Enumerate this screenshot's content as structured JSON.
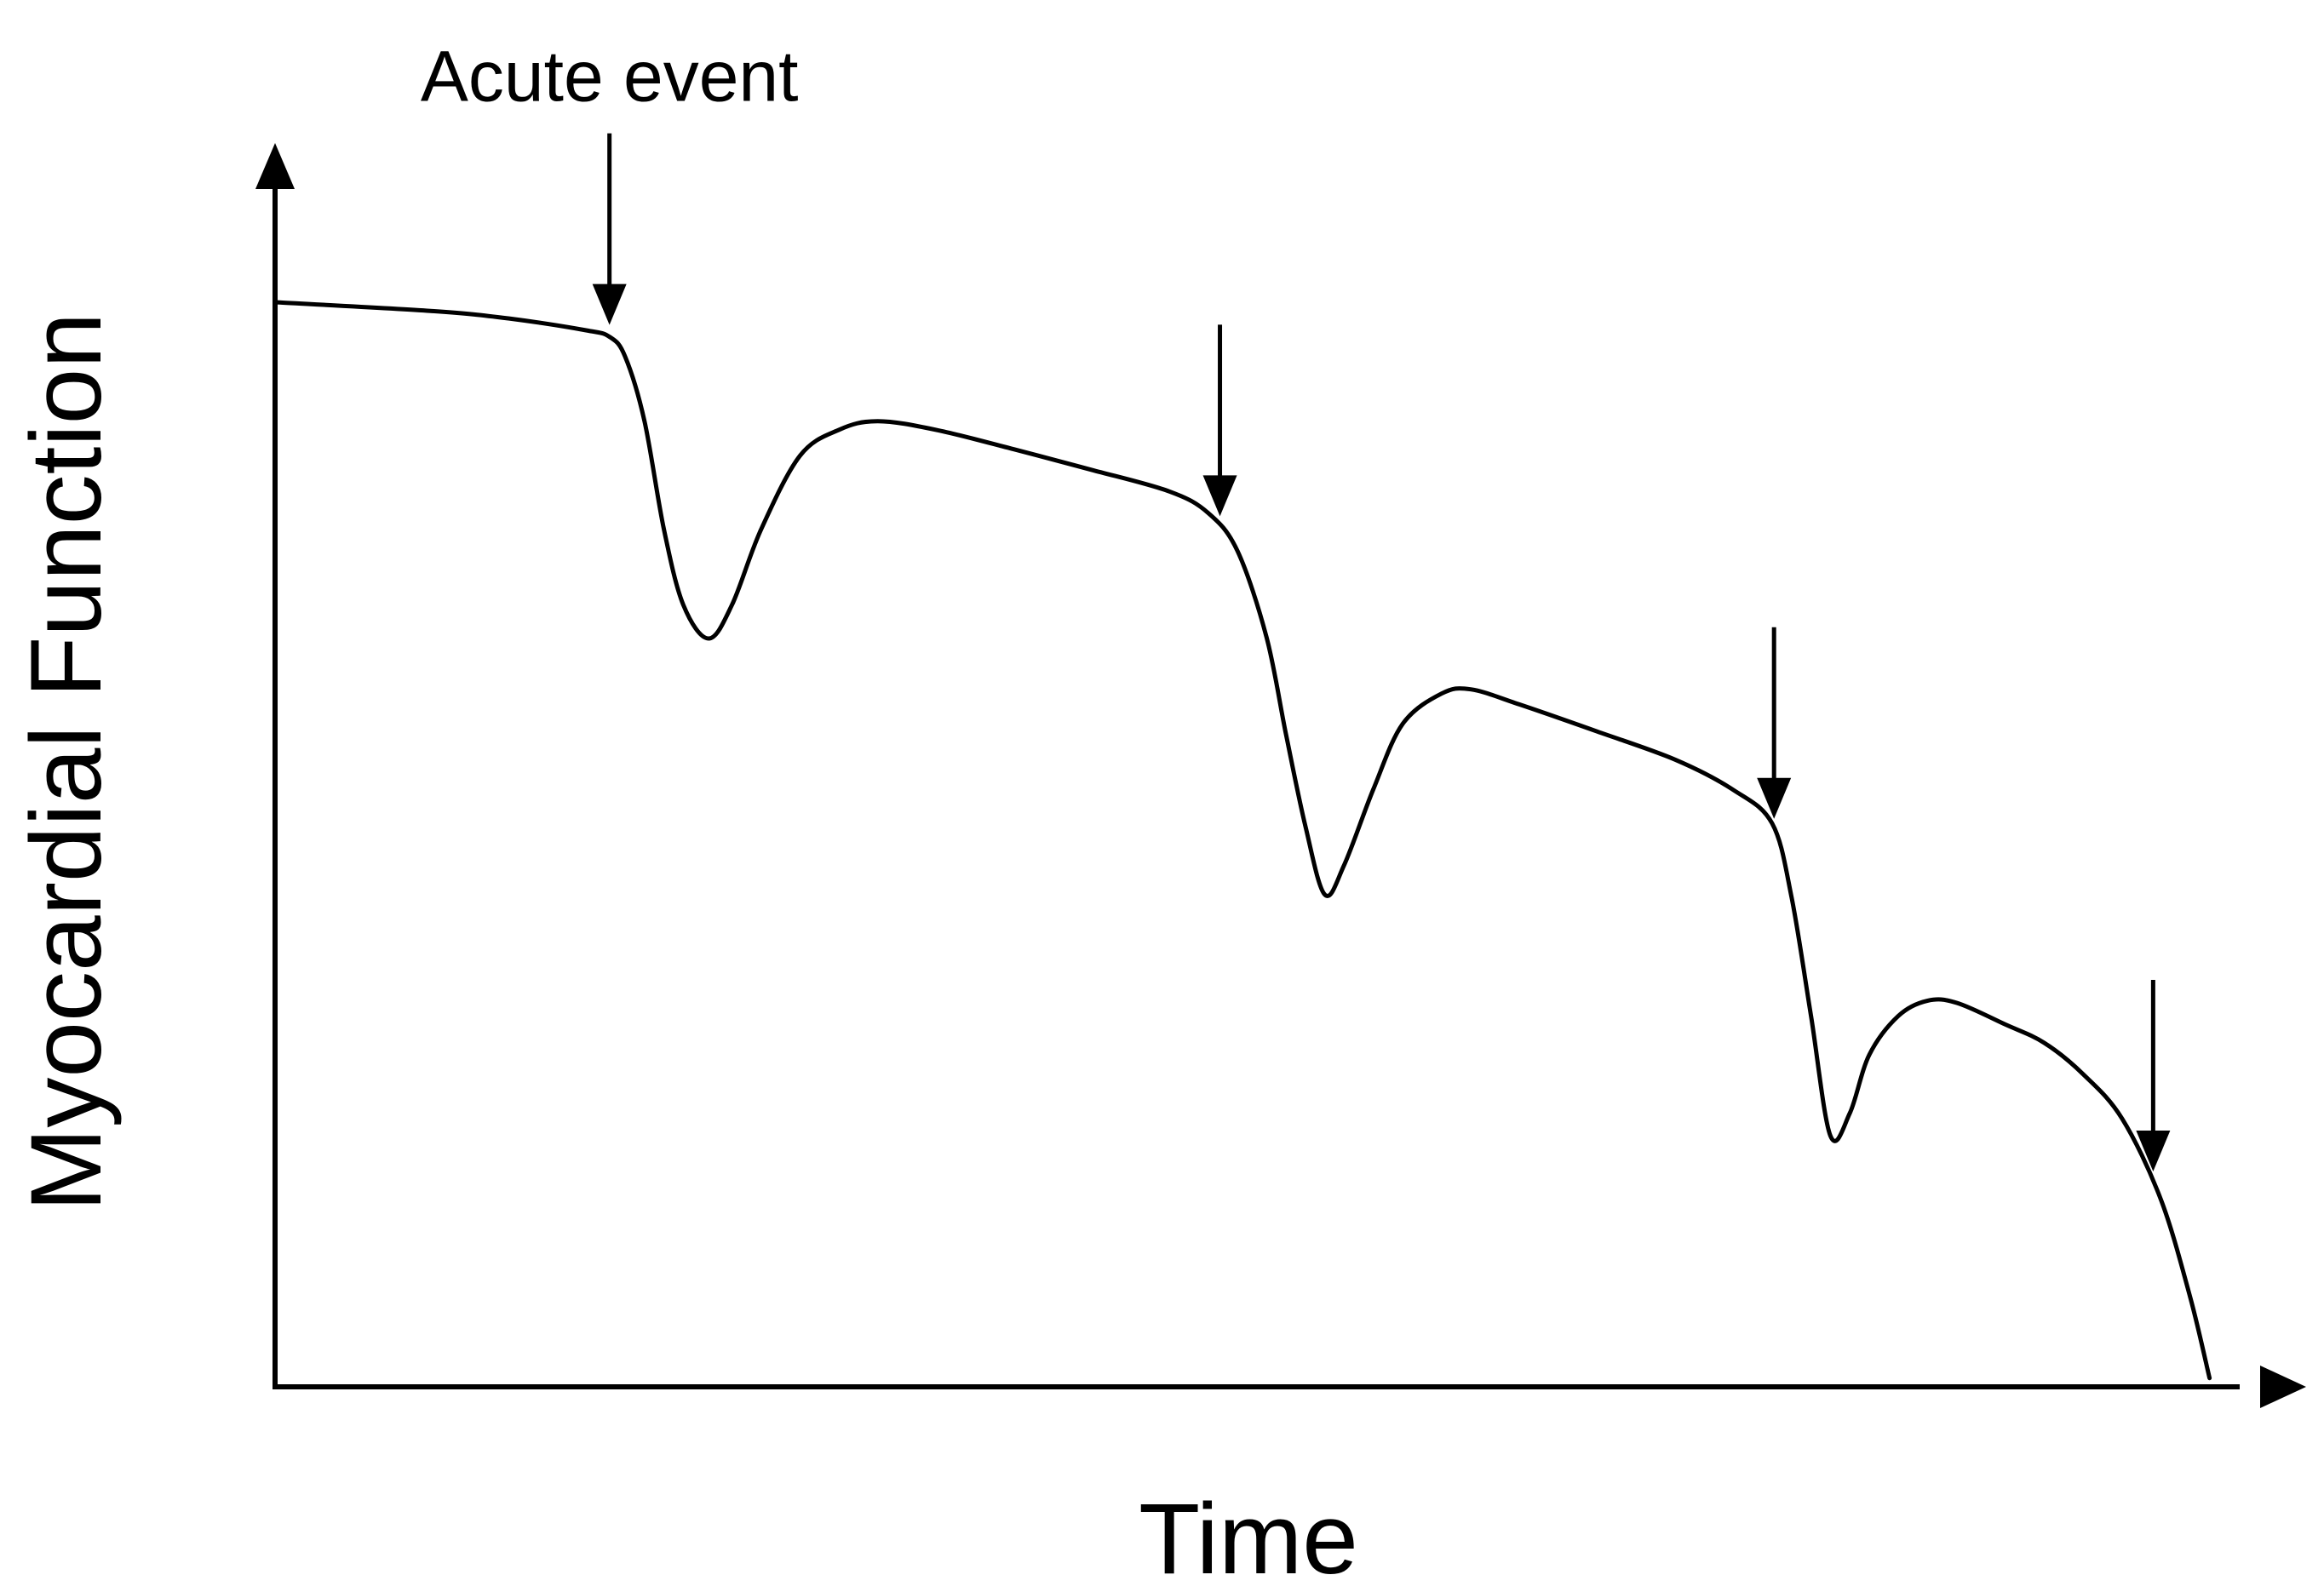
{
  "chart_data": {
    "type": "line",
    "title": "",
    "xlabel": "Time",
    "ylabel": "Myocardial Function",
    "xlim": [
      0,
      100
    ],
    "ylim": [
      0,
      100
    ],
    "grid": false,
    "legend": "none",
    "line_color": "#000000",
    "ticks": "none",
    "series": [
      {
        "points": [
          [
            0,
            100
          ],
          [
            8,
            99.2
          ],
          [
            12,
            98.5
          ],
          [
            16,
            97.4
          ],
          [
            17.2,
            96.8
          ],
          [
            18,
            95
          ],
          [
            19,
            89
          ],
          [
            20,
            79
          ],
          [
            21,
            72
          ],
          [
            22.3,
            68.9
          ],
          [
            23.5,
            72
          ],
          [
            25,
            79
          ],
          [
            27,
            85.8
          ],
          [
            29,
            88.2
          ],
          [
            31,
            89
          ],
          [
            34,
            88.2
          ],
          [
            38,
            86.4
          ],
          [
            42,
            84.5
          ],
          [
            46,
            82.5
          ],
          [
            48,
            80.5
          ],
          [
            49.5,
            77
          ],
          [
            51,
            69
          ],
          [
            52,
            60
          ],
          [
            53,
            51.5
          ],
          [
            54,
            45.2
          ],
          [
            55,
            48
          ],
          [
            56.5,
            55
          ],
          [
            58,
            61
          ],
          [
            60,
            63.8
          ],
          [
            61.5,
            64.2
          ],
          [
            64,
            62.8
          ],
          [
            68,
            60.3
          ],
          [
            72,
            57.7
          ],
          [
            75,
            54.9
          ],
          [
            77,
            51.8
          ],
          [
            78,
            45
          ],
          [
            79,
            34
          ],
          [
            80,
            22.9
          ],
          [
            81,
            25
          ],
          [
            82,
            30.4
          ],
          [
            83.5,
            34
          ],
          [
            85,
            35.4
          ],
          [
            86.5,
            35.2
          ],
          [
            89,
            33.2
          ],
          [
            91,
            31.5
          ],
          [
            93,
            28.6
          ],
          [
            95,
            24.5
          ],
          [
            97,
            17
          ],
          [
            98.5,
            8
          ],
          [
            99.5,
            0.5
          ]
        ]
      }
    ],
    "annotations": [
      {
        "text": "Acute event",
        "x": 17.2
      },
      {
        "text": "",
        "x": 48.6
      },
      {
        "text": "",
        "x": 77.1
      },
      {
        "text": "",
        "x": 96.6
      }
    ]
  }
}
